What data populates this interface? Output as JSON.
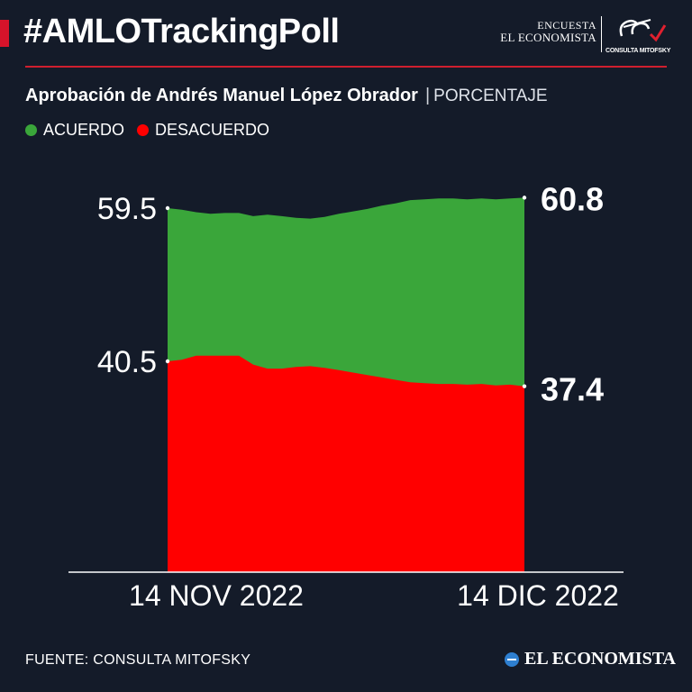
{
  "header": {
    "title": "#AMLOTrackingPoll",
    "brand_line1": "ENCUESTA",
    "brand_line2": "EL ECONOMISTA",
    "brand_logo_caption": "CONSULTA MITOFSKY"
  },
  "subtitle": {
    "main": "Aprobación de Andrés Manuel López Obrador",
    "separator": "|",
    "unit": "PORCENTAJE"
  },
  "legend": [
    {
      "label": "ACUERDO",
      "color": "#3aa63a"
    },
    {
      "label": "DESACUERDO",
      "color": "#ff0000"
    }
  ],
  "chart_data": {
    "type": "area",
    "x_start_label": "14 NOV 2022",
    "x_end_label": "14 DIC 2022",
    "series": [
      {
        "name": "ACUERDO",
        "color": "#3aa63a",
        "start_label": "59.5",
        "end_label": "60.8",
        "values": [
          59.5,
          59.3,
          59.0,
          58.8,
          58.9,
          58.9,
          58.5,
          58.7,
          58.5,
          58.3,
          58.2,
          58.4,
          58.8,
          59.1,
          59.4,
          59.8,
          60.1,
          60.5,
          60.6,
          60.7,
          60.7,
          60.6,
          60.7,
          60.6,
          60.7,
          60.8
        ]
      },
      {
        "name": "DESACUERDO",
        "color": "#ff0000",
        "start_label": "40.5",
        "end_label": "37.4",
        "values": [
          40.5,
          40.7,
          41.2,
          41.2,
          41.2,
          41.2,
          40.1,
          39.6,
          39.6,
          39.8,
          39.9,
          39.7,
          39.4,
          39.1,
          38.8,
          38.5,
          38.2,
          37.9,
          37.8,
          37.7,
          37.7,
          37.6,
          37.7,
          37.5,
          37.6,
          37.4
        ]
      }
    ]
  },
  "footer": {
    "source": "FUENTE: CONSULTA MITOFSKY",
    "brand": "EL ECONOMISTA"
  }
}
